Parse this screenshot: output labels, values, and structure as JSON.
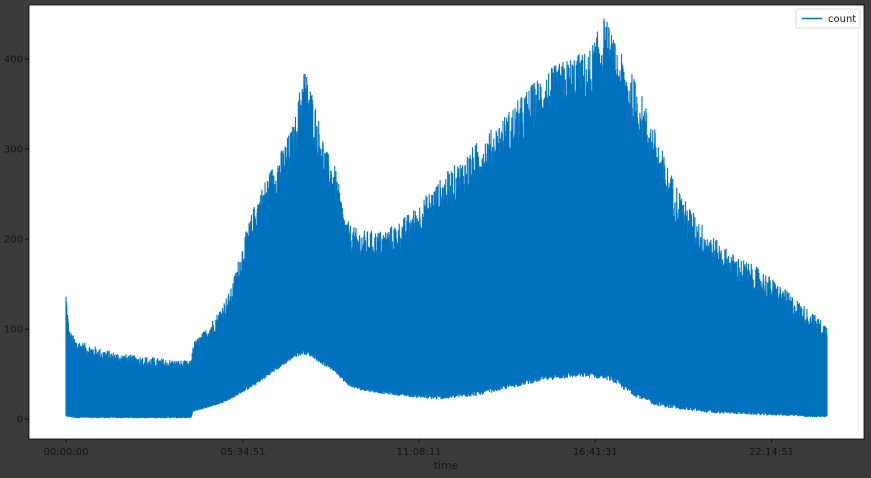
{
  "chart_data": {
    "type": "line",
    "title": "",
    "xlabel": "time",
    "ylabel": "",
    "x_ticks": [
      "00:00:00",
      "05:34:51",
      "11:08:11",
      "16:41:31",
      "22:14:51"
    ],
    "x_tick_hours": [
      0,
      5.581,
      11.136,
      16.692,
      22.247
    ],
    "x_range_hours": [
      0,
      24
    ],
    "y_ticks": [
      0,
      100,
      200,
      300,
      400
    ],
    "ylim": [
      -22,
      460
    ],
    "legend": {
      "position": "top-right",
      "entries": [
        "count"
      ]
    },
    "grid": false,
    "series": [
      {
        "name": "count",
        "color": "#0072bd",
        "hours": [
          0,
          0.1,
          0.3,
          0.6,
          1.0,
          1.5,
          2.0,
          2.5,
          3.0,
          3.5,
          3.95,
          4.0,
          4.4,
          4.8,
          5.2,
          5.6,
          6.0,
          6.4,
          6.8,
          7.2,
          7.5,
          7.8,
          8.0,
          8.2,
          8.5,
          8.8,
          9.0,
          9.3,
          9.6,
          10.0,
          10.5,
          11.0,
          11.5,
          12.0,
          12.5,
          13.0,
          13.5,
          14.0,
          14.5,
          15.0,
          15.5,
          16.0,
          16.5,
          17.0,
          17.3,
          17.6,
          18.0,
          18.5,
          19.0,
          19.5,
          20.0,
          20.5,
          21.0,
          21.5,
          22.0,
          22.5,
          23.0,
          23.5,
          24.0
        ],
        "max": [
          145,
          100,
          90,
          85,
          80,
          75,
          72,
          70,
          68,
          66,
          65,
          85,
          100,
          120,
          145,
          200,
          245,
          275,
          300,
          330,
          395,
          360,
          330,
          300,
          280,
          225,
          215,
          210,
          210,
          210,
          220,
          235,
          255,
          275,
          290,
          310,
          325,
          345,
          365,
          385,
          395,
          405,
          410,
          450,
          420,
          400,
          375,
          330,
          280,
          245,
          220,
          200,
          185,
          175,
          165,
          150,
          135,
          120,
          105
        ],
        "min": [
          2,
          2,
          1,
          1,
          1,
          1,
          1,
          1,
          1,
          1,
          1,
          8,
          12,
          16,
          22,
          30,
          38,
          48,
          58,
          68,
          72,
          68,
          62,
          58,
          52,
          40,
          35,
          32,
          30,
          28,
          26,
          24,
          22,
          22,
          24,
          26,
          30,
          34,
          38,
          42,
          44,
          46,
          46,
          44,
          40,
          32,
          24,
          16,
          12,
          10,
          8,
          6,
          6,
          5,
          4,
          4,
          3,
          2,
          2
        ]
      }
    ]
  }
}
